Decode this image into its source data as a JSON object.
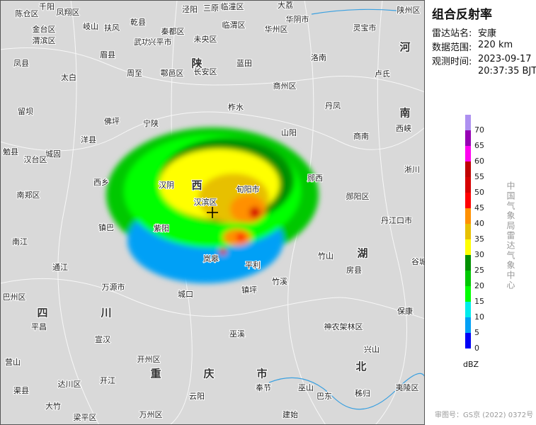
{
  "title": "组合反射率",
  "info": [
    {
      "label": "雷达站名:",
      "value": "安康"
    },
    {
      "label": "数据范围:",
      "value": "220 km"
    }
  ],
  "observation_time": {
    "label": "观测时间:",
    "date": "2023-09-17",
    "time": "20:37:35 BJT"
  },
  "legend": {
    "unit": "dBZ",
    "levels": [
      {
        "value": 0,
        "color": "#0000f6"
      },
      {
        "value": 5,
        "color": "#01a0f6"
      },
      {
        "value": 10,
        "color": "#00ecec"
      },
      {
        "value": 15,
        "color": "#01ff00"
      },
      {
        "value": 20,
        "color": "#00c800"
      },
      {
        "value": 25,
        "color": "#019000"
      },
      {
        "value": 30,
        "color": "#ffff00"
      },
      {
        "value": 35,
        "color": "#e7c000"
      },
      {
        "value": 40,
        "color": "#ff9000"
      },
      {
        "value": 45,
        "color": "#ff0000"
      },
      {
        "value": 50,
        "color": "#d60000"
      },
      {
        "value": 55,
        "color": "#c00000"
      },
      {
        "value": 60,
        "color": "#ff00f0"
      },
      {
        "value": 65,
        "color": "#9600b4"
      },
      {
        "value": 70,
        "color": "#ad90f0"
      }
    ]
  },
  "credit": "中国气象局雷达气象中心",
  "approval": "审图号：GS京 (2022) 0372号",
  "regions": [
    "陕",
    "西",
    "四",
    "川",
    "重",
    "庆",
    "市",
    "湖",
    "北",
    "河",
    "南"
  ],
  "places": [
    "千阳",
    "凤翔区",
    "陈仓区",
    "金台区",
    "渭滨区",
    "岐山",
    "扶风",
    "眉县",
    "乾县",
    "武功",
    "兴平市",
    "秦都区",
    "泾阳",
    "三原",
    "未央区",
    "临潼区",
    "临渭区",
    "华州区",
    "大荔",
    "华阴市",
    "灵宝市",
    "陕州区",
    "洛南",
    "卢氏",
    "太白",
    "周至",
    "鄠邑区",
    "长安区",
    "蓝田",
    "凤县",
    "商州区",
    "留坝",
    "佛坪",
    "宁陕",
    "柞水",
    "丹凤",
    "山阳",
    "商南",
    "洋县",
    "城固",
    "汉台区",
    "勉县",
    "西峡",
    "淅川",
    "西乡",
    "汉阴",
    "汉滨区",
    "旬阳市",
    "郧西",
    "郧阳区",
    "丹江口市",
    "南郑区",
    "镇巴",
    "紫阳",
    "岚皋",
    "平利",
    "竹山",
    "房县",
    "南江",
    "通江",
    "万源市",
    "城口",
    "镇坪",
    "竹溪",
    "谷城",
    "保康",
    "巴州区",
    "平昌",
    "宣汉",
    "巫溪",
    "神农架林区",
    "兴山",
    "达川区",
    "开州区",
    "开江",
    "渠县",
    "营山",
    "大竹",
    "梁平区",
    "万州区",
    "云阳",
    "奉节",
    "巫山",
    "巴东",
    "秭归",
    "夷陵区",
    "建始"
  ]
}
